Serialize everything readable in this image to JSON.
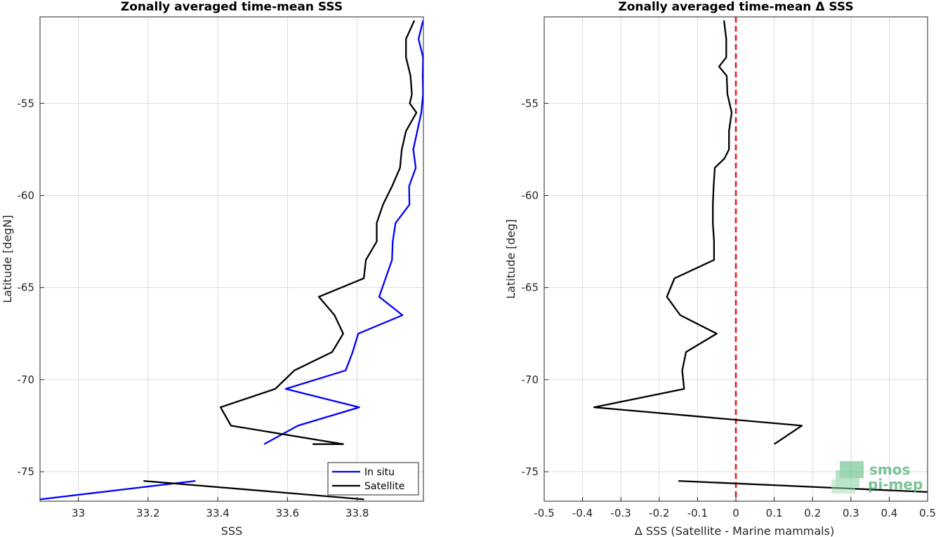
{
  "chart_data": [
    {
      "type": "line",
      "title": "Zonally averaged time-mean SSS",
      "xlabel": "SSS",
      "ylabel": "Latitude [degN]",
      "xlim": [
        32.89,
        33.99
      ],
      "ylim": [
        -76.6,
        -50.3
      ],
      "xticks": [
        33,
        33.2,
        33.4,
        33.6,
        33.8
      ],
      "xtick_labels": [
        "33",
        "33.2",
        "33.4",
        "33.6",
        "33.8"
      ],
      "yticks": [
        -55,
        -60,
        -65,
        -70,
        -75
      ],
      "ytick_labels": [
        "-55",
        "-60",
        "-65",
        "-70",
        "-75"
      ],
      "grid": true,
      "legend_position": "bottom-right",
      "series": [
        {
          "name": "In situ",
          "color": "#0000ff",
          "x": [
            33.989,
            33.976,
            33.989,
            33.988,
            33.989,
            33.984,
            33.961,
            33.968,
            33.949,
            33.95,
            33.91,
            33.902,
            33.9,
            33.863,
            33.93,
            33.803,
            33.787,
            33.767,
            33.595,
            33.806,
            33.63,
            33.533
          ],
          "y": [
            -50.5,
            -51.5,
            -52.5,
            -53.5,
            -54.5,
            -55.5,
            -57.5,
            -58.5,
            -59.5,
            -60.5,
            -61.5,
            -62.5,
            -63.5,
            -65.5,
            -66.5,
            -67.5,
            -68.5,
            -69.5,
            -70.5,
            -71.5,
            -72.5,
            -73.5
          ]
        },
        {
          "name": "In situ",
          "color": "#0000ff",
          "x": [
            33.336,
            32.889
          ],
          "y": [
            -75.5,
            -76.5
          ]
        },
        {
          "name": "Satellite",
          "color": "#000000",
          "x": [
            33.964,
            33.94,
            33.94,
            33.953,
            33.957,
            33.951,
            33.97,
            33.94,
            33.928,
            33.923,
            33.9,
            33.874,
            33.856,
            33.856,
            33.825,
            33.819,
            33.69,
            33.735,
            33.76,
            33.728,
            33.62,
            33.565,
            33.408,
            33.438,
            33.76,
            33.672
          ],
          "y": [
            -50.5,
            -51.5,
            -52.5,
            -53.5,
            -54.5,
            -55.0,
            -55.5,
            -56.5,
            -57.5,
            -58.5,
            -59.5,
            -60.5,
            -61.5,
            -62.5,
            -63.5,
            -64.5,
            -65.5,
            -66.5,
            -67.5,
            -68.5,
            -69.5,
            -70.5,
            -71.5,
            -72.5,
            -73.5,
            -73.5
          ]
        },
        {
          "name": "Satellite",
          "color": "#000000",
          "x": [
            33.187,
            33.82
          ],
          "y": [
            -75.5,
            -76.5
          ]
        }
      ]
    },
    {
      "type": "line",
      "title": "Zonally averaged time-mean Δ SSS",
      "xlabel": "Δ SSS (Satellite - Marine mammals)",
      "ylabel": "Latitude [deg]",
      "xlim": [
        -0.5,
        0.5
      ],
      "ylim": [
        -76.6,
        -50.3
      ],
      "xticks": [
        -0.5,
        -0.4,
        -0.3,
        -0.2,
        -0.1,
        0,
        0.1,
        0.2,
        0.3,
        0.4,
        0.5
      ],
      "xtick_labels": [
        "-0.5",
        "-0.4",
        "-0.3",
        "-0.2",
        "-0.1",
        "0",
        "0.1",
        "0.2",
        "0.3",
        "0.4",
        "0.5"
      ],
      "yticks": [
        -55,
        -60,
        -65,
        -70,
        -75
      ],
      "ytick_labels": [
        "-55",
        "-60",
        "-65",
        "-70",
        "-75"
      ],
      "grid": true,
      "reference_line": {
        "x": 0,
        "color": "#e41a1c",
        "style": "dashed"
      },
      "series": [
        {
          "color": "#000000",
          "x": [
            -0.031,
            -0.025,
            -0.025,
            -0.044,
            -0.024,
            -0.022,
            -0.011,
            -0.018,
            -0.018,
            -0.03,
            -0.055,
            -0.058,
            -0.06,
            -0.06,
            -0.057,
            -0.057,
            -0.16,
            -0.18,
            -0.145,
            -0.05,
            -0.13,
            -0.14,
            -0.135,
            -0.37,
            0.172,
            0.1
          ],
          "y": [
            -50.5,
            -51.5,
            -52.5,
            -53.0,
            -53.5,
            -54.5,
            -55.5,
            -56.5,
            -57.5,
            -58.0,
            -58.5,
            -59.5,
            -60.5,
            -61.5,
            -62.5,
            -63.5,
            -64.5,
            -65.5,
            -66.5,
            -67.5,
            -68.5,
            -69.5,
            -70.5,
            -71.5,
            -72.5,
            -73.5
          ]
        },
        {
          "color": "#000000",
          "x": [
            -0.15,
            0.5
          ],
          "y": [
            -75.5,
            -76.1
          ]
        }
      ]
    }
  ],
  "legend": {
    "items": [
      {
        "label": "In situ",
        "color": "#0000ff"
      },
      {
        "label": "Satellite",
        "color": "#000000"
      }
    ]
  },
  "watermark": {
    "line1": "smos",
    "line2": "pi-mep",
    "color": "#4caf72"
  }
}
